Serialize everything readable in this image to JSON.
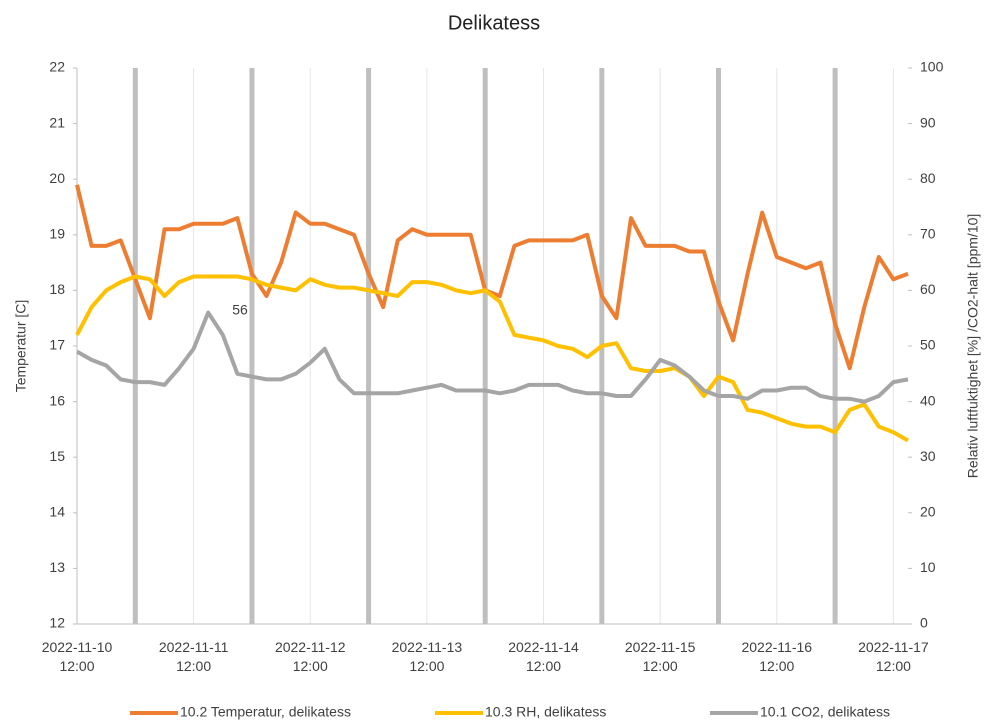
{
  "chart_data": {
    "type": "line",
    "title": "Delikatess",
    "ylabel": "Temperatur  [C]",
    "y2label": "Relativ luftfuktighet [%] /CO2-halt [ppm/10]",
    "x": [
      "2022-11-10 12:00",
      "2022-11-10 15:00",
      "2022-11-10 18:00",
      "2022-11-10 21:00",
      "2022-11-11 00:00",
      "2022-11-11 03:00",
      "2022-11-11 06:00",
      "2022-11-11 09:00",
      "2022-11-11 12:00",
      "2022-11-11 15:00",
      "2022-11-11 18:00",
      "2022-11-11 21:00",
      "2022-11-12 00:00",
      "2022-11-12 03:00",
      "2022-11-12 06:00",
      "2022-11-12 09:00",
      "2022-11-12 12:00",
      "2022-11-12 15:00",
      "2022-11-12 18:00",
      "2022-11-12 21:00",
      "2022-11-13 00:00",
      "2022-11-13 03:00",
      "2022-11-13 06:00",
      "2022-11-13 09:00",
      "2022-11-13 12:00",
      "2022-11-13 15:00",
      "2022-11-13 18:00",
      "2022-11-13 21:00",
      "2022-11-14 00:00",
      "2022-11-14 03:00",
      "2022-11-14 06:00",
      "2022-11-14 09:00",
      "2022-11-14 12:00",
      "2022-11-14 15:00",
      "2022-11-14 18:00",
      "2022-11-14 21:00",
      "2022-11-15 00:00",
      "2022-11-15 03:00",
      "2022-11-15 06:00",
      "2022-11-15 09:00",
      "2022-11-15 12:00",
      "2022-11-15 15:00",
      "2022-11-15 18:00",
      "2022-11-15 21:00",
      "2022-11-16 00:00",
      "2022-11-16 03:00",
      "2022-11-16 06:00",
      "2022-11-16 09:00",
      "2022-11-16 12:00",
      "2022-11-16 15:00",
      "2022-11-16 18:00",
      "2022-11-16 21:00",
      "2022-11-17 00:00",
      "2022-11-17 03:00",
      "2022-11-17 06:00",
      "2022-11-17 09:00",
      "2022-11-17 12:00",
      "2022-11-17 15:00"
    ],
    "series": [
      {
        "name": "10.2 Temperatur, delikatess",
        "color": "#ed7d31",
        "values": [
          19.9,
          18.8,
          18.8,
          18.9,
          18.2,
          17.5,
          19.1,
          19.1,
          19.2,
          19.2,
          19.2,
          19.3,
          18.3,
          17.9,
          18.5,
          19.4,
          19.2,
          19.2,
          19.1,
          19.0,
          18.3,
          17.7,
          18.9,
          19.1,
          19.0,
          19.0,
          19.0,
          19.0,
          18.0,
          17.9,
          18.8,
          18.9,
          18.9,
          18.9,
          18.9,
          19.0,
          17.9,
          17.5,
          19.3,
          18.8,
          18.8,
          18.8,
          18.7,
          18.7,
          17.8,
          17.1,
          18.3,
          19.4,
          18.6,
          18.5,
          18.4,
          18.5,
          17.4,
          16.6,
          17.7,
          18.6,
          18.2,
          18.3
        ]
      },
      {
        "name": "10.3 RH, delikatess",
        "color": "#ffc000",
        "axis": "y2",
        "values": [
          52,
          57,
          60,
          61.5,
          62.5,
          62,
          59,
          61.5,
          62.5,
          62.5,
          62.5,
          62.5,
          62,
          61,
          60.5,
          60,
          62,
          61,
          60.5,
          60.5,
          60,
          59.5,
          59,
          61.5,
          61.5,
          61,
          60,
          59.5,
          60,
          58,
          52,
          51.5,
          51,
          50,
          49.5,
          48,
          50,
          50.5,
          46,
          45.5,
          45.5,
          46,
          44.5,
          41,
          44.5,
          43.5,
          38.5,
          38,
          37,
          36,
          35.5,
          35.5,
          34.5,
          38.5,
          39.5,
          35.5,
          34.5,
          33
        ]
      },
      {
        "name": "10.1 CO2, delikatess",
        "color": "#a5a5a5",
        "axis": "y2",
        "values": [
          49,
          47.5,
          46.5,
          44,
          43.5,
          43.5,
          43,
          46,
          49.5,
          56,
          52,
          45,
          44.5,
          44,
          44,
          45,
          47,
          49.5,
          44,
          41.5,
          41.5,
          41.5,
          41.5,
          42,
          42.5,
          43,
          42,
          42,
          42,
          41.5,
          42,
          43,
          43,
          43,
          42,
          41.5,
          41.5,
          41,
          41,
          44,
          47.5,
          46.5,
          44.5,
          42,
          41,
          41,
          40.5,
          42,
          42,
          42.5,
          42.5,
          41,
          40.5,
          40.5,
          40,
          41,
          43.5,
          44
        ],
        "value_labels": [
          null,
          null,
          null,
          null,
          null,
          null,
          null,
          null,
          null,
          "56",
          null,
          null,
          null,
          null,
          null,
          null,
          null,
          null,
          null,
          null,
          null,
          null,
          null,
          null,
          null,
          null,
          null,
          null,
          null,
          null,
          null,
          null,
          null,
          null,
          null,
          null,
          null,
          null,
          null,
          null,
          null,
          null,
          null,
          null,
          null,
          null,
          null,
          null,
          null,
          null,
          null,
          null,
          null,
          null,
          null,
          null,
          null,
          null
        ]
      }
    ],
    "vlines": [
      "2022-11-11 00:00",
      "2022-11-12 00:00",
      "2022-11-13 00:00",
      "2022-11-14 00:00",
      "2022-11-15 00:00",
      "2022-11-16 00:00",
      "2022-11-17 00:00"
    ],
    "vline_color": "#bfbfbf",
    "xlim": [
      "2022-11-10 12:00",
      "2022-11-17 15:00"
    ],
    "xticks": [
      "2022-11-10 12:00",
      "2022-11-11 12:00",
      "2022-11-12 12:00",
      "2022-11-13 12:00",
      "2022-11-14 12:00",
      "2022-11-15 12:00",
      "2022-11-16 12:00",
      "2022-11-17 12:00"
    ],
    "ylim": [
      12,
      22
    ],
    "yticks": [
      12,
      13,
      14,
      15,
      16,
      17,
      18,
      19,
      20,
      21,
      22
    ],
    "y2lim": [
      0,
      100
    ],
    "y2ticks": [
      0,
      10,
      20,
      30,
      40,
      50,
      60,
      70,
      80,
      90,
      100
    ],
    "grid": "x",
    "legend": "bottom"
  }
}
